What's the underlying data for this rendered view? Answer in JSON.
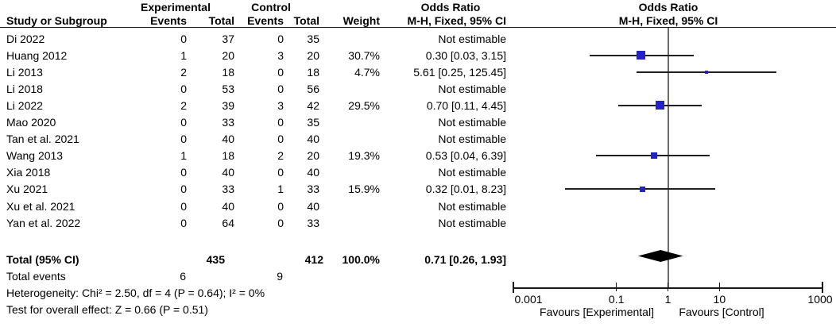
{
  "header": {
    "group_experimental": "Experimental",
    "group_control": "Control",
    "group_or_text": "Odds Ratio",
    "group_or_plot": "Odds Ratio",
    "study": "Study or Subgroup",
    "events_exp": "Events",
    "total_exp": "Total",
    "events_ctrl": "Events",
    "total_ctrl": "Total",
    "weight": "Weight",
    "mh_text": "M-H, Fixed, 95% CI",
    "mh_plot": "M-H, Fixed, 95% CI"
  },
  "table": {
    "rows": [
      {
        "study": "Di 2022",
        "events_exp": "0",
        "total_exp": "37",
        "events_ctrl": "0",
        "total_ctrl": "35",
        "weight": "",
        "or_text": "Not estimable"
      },
      {
        "study": "Huang 2012",
        "events_exp": "1",
        "total_exp": "20",
        "events_ctrl": "3",
        "total_ctrl": "20",
        "weight": "30.7%",
        "or_text": "0.30 [0.03, 3.15]"
      },
      {
        "study": "Li 2013",
        "events_exp": "2",
        "total_exp": "18",
        "events_ctrl": "0",
        "total_ctrl": "18",
        "weight": "4.7%",
        "or_text": "5.61 [0.25, 125.45]"
      },
      {
        "study": "Li 2018",
        "events_exp": "0",
        "total_exp": "53",
        "events_ctrl": "0",
        "total_ctrl": "56",
        "weight": "",
        "or_text": "Not estimable"
      },
      {
        "study": "Li 2022",
        "events_exp": "2",
        "total_exp": "39",
        "events_ctrl": "3",
        "total_ctrl": "42",
        "weight": "29.5%",
        "or_text": "0.70 [0.11, 4.45]"
      },
      {
        "study": "Mao 2020",
        "events_exp": "0",
        "total_exp": "33",
        "events_ctrl": "0",
        "total_ctrl": "35",
        "weight": "",
        "or_text": "Not estimable"
      },
      {
        "study": "Tan et al. 2021",
        "events_exp": "0",
        "total_exp": "40",
        "events_ctrl": "0",
        "total_ctrl": "40",
        "weight": "",
        "or_text": "Not estimable"
      },
      {
        "study": "Wang 2013",
        "events_exp": "1",
        "total_exp": "18",
        "events_ctrl": "2",
        "total_ctrl": "20",
        "weight": "19.3%",
        "or_text": "0.53 [0.04, 6.39]"
      },
      {
        "study": "Xia 2018",
        "events_exp": "0",
        "total_exp": "40",
        "events_ctrl": "0",
        "total_ctrl": "40",
        "weight": "",
        "or_text": "Not estimable"
      },
      {
        "study": "Xu 2021",
        "events_exp": "0",
        "total_exp": "33",
        "events_ctrl": "1",
        "total_ctrl": "33",
        "weight": "15.9%",
        "or_text": "0.32 [0.01, 8.23]"
      },
      {
        "study": "Xu et al. 2021",
        "events_exp": "0",
        "total_exp": "40",
        "events_ctrl": "0",
        "total_ctrl": "40",
        "weight": "",
        "or_text": "Not estimable"
      },
      {
        "study": "Yan et al. 2022",
        "events_exp": "0",
        "total_exp": "64",
        "events_ctrl": "0",
        "total_ctrl": "33",
        "weight": "",
        "or_text": "Not estimable"
      }
    ],
    "total_row": {
      "label": "Total (95% CI)",
      "total_exp": "435",
      "total_ctrl": "412",
      "weight": "100.0%",
      "or_text": "0.71 [0.26, 1.93]"
    },
    "total_events_row": {
      "label": "Total events",
      "events_exp": "6",
      "events_ctrl": "9"
    },
    "heterogeneity_line": "Heterogeneity: Chi² = 2.50, df = 4 (P = 0.64); I² = 0%",
    "overall_effect_line": "Test for overall effect: Z = 0.66 (P = 0.51)"
  },
  "axis": {
    "tick_labels": [
      "0.001",
      "0.1",
      "1",
      "10",
      "1000"
    ],
    "favours_left": "Favours [Experimental]",
    "favours_right": "Favours [Control]"
  },
  "colors": {
    "marker_blue": "#2222C8",
    "diamond_black": "#000000",
    "ci_line": "#1f1f1f",
    "null_line_gray": "#6a6a6a",
    "axis_black": "#1a1a1a",
    "text": "#000000",
    "background": "#ffffff"
  },
  "chart_data": {
    "type": "scatter",
    "subtype": "forest_plot",
    "title": "Odds Ratio, M-H, Fixed, 95% CI",
    "x_scale": "log",
    "xlim": [
      0.001,
      1000
    ],
    "x_ticks": [
      0.001,
      0.1,
      1,
      10,
      1000
    ],
    "null_line": 1,
    "favours": [
      "Favours [Experimental]",
      "Favours [Control]"
    ],
    "studies": [
      {
        "study": "Di 2022",
        "events_exp": 0,
        "total_exp": 37,
        "events_ctrl": 0,
        "total_ctrl": 35,
        "weight_pct": null,
        "or": null,
        "ci": null,
        "note": "Not estimable"
      },
      {
        "study": "Huang 2012",
        "events_exp": 1,
        "total_exp": 20,
        "events_ctrl": 3,
        "total_ctrl": 20,
        "weight_pct": 30.7,
        "or": 0.3,
        "ci": [
          0.03,
          3.15
        ]
      },
      {
        "study": "Li 2013",
        "events_exp": 2,
        "total_exp": 18,
        "events_ctrl": 0,
        "total_ctrl": 18,
        "weight_pct": 4.7,
        "or": 5.61,
        "ci": [
          0.25,
          125.45
        ]
      },
      {
        "study": "Li 2018",
        "events_exp": 0,
        "total_exp": 53,
        "events_ctrl": 0,
        "total_ctrl": 56,
        "weight_pct": null,
        "or": null,
        "ci": null,
        "note": "Not estimable"
      },
      {
        "study": "Li 2022",
        "events_exp": 2,
        "total_exp": 39,
        "events_ctrl": 3,
        "total_ctrl": 42,
        "weight_pct": 29.5,
        "or": 0.7,
        "ci": [
          0.11,
          4.45
        ]
      },
      {
        "study": "Mao 2020",
        "events_exp": 0,
        "total_exp": 33,
        "events_ctrl": 0,
        "total_ctrl": 35,
        "weight_pct": null,
        "or": null,
        "ci": null,
        "note": "Not estimable"
      },
      {
        "study": "Tan et al. 2021",
        "events_exp": 0,
        "total_exp": 40,
        "events_ctrl": 0,
        "total_ctrl": 40,
        "weight_pct": null,
        "or": null,
        "ci": null,
        "note": "Not estimable"
      },
      {
        "study": "Wang 2013",
        "events_exp": 1,
        "total_exp": 18,
        "events_ctrl": 2,
        "total_ctrl": 20,
        "weight_pct": 19.3,
        "or": 0.53,
        "ci": [
          0.04,
          6.39
        ]
      },
      {
        "study": "Xia 2018",
        "events_exp": 0,
        "total_exp": 40,
        "events_ctrl": 0,
        "total_ctrl": 40,
        "weight_pct": null,
        "or": null,
        "ci": null,
        "note": "Not estimable"
      },
      {
        "study": "Xu 2021",
        "events_exp": 0,
        "total_exp": 33,
        "events_ctrl": 1,
        "total_ctrl": 33,
        "weight_pct": 15.9,
        "or": 0.32,
        "ci": [
          0.01,
          8.23
        ]
      },
      {
        "study": "Xu et al. 2021",
        "events_exp": 0,
        "total_exp": 40,
        "events_ctrl": 0,
        "total_ctrl": 40,
        "weight_pct": null,
        "or": null,
        "ci": null,
        "note": "Not estimable"
      },
      {
        "study": "Yan et al. 2022",
        "events_exp": 0,
        "total_exp": 64,
        "events_ctrl": 0,
        "total_ctrl": 33,
        "weight_pct": null,
        "or": null,
        "ci": null,
        "note": "Not estimable"
      }
    ],
    "total": {
      "label": "Total (95% CI)",
      "total_exp": 435,
      "total_ctrl": 412,
      "weight_pct": 100.0,
      "or": 0.71,
      "ci": [
        0.26,
        1.93
      ],
      "events_exp": 6,
      "events_ctrl": 9
    },
    "heterogeneity": {
      "chi2": 2.5,
      "df": 4,
      "p": 0.64,
      "i2_pct": 0
    },
    "overall_effect": {
      "z": 0.66,
      "p": 0.51
    }
  }
}
